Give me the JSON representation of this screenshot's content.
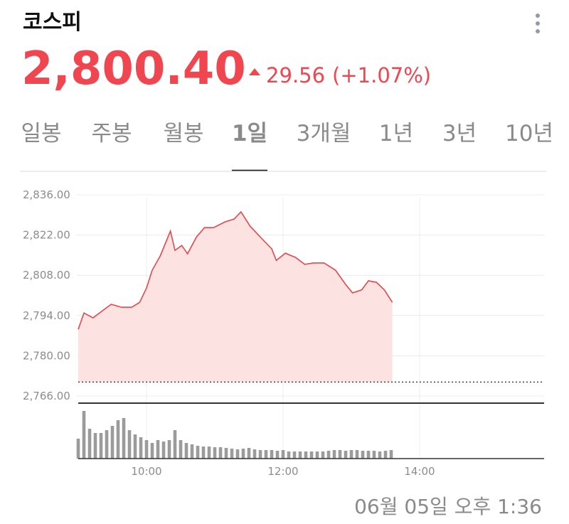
{
  "header": {
    "title": "코스피",
    "price": "2,800.40",
    "change": "29.56",
    "change_pct": "(+1.07%)"
  },
  "tabs": {
    "items": [
      "일봉",
      "주봉",
      "월봉",
      "1일",
      "3개월",
      "1년",
      "3년",
      "10년"
    ],
    "selected": 3
  },
  "chart_data": [
    {
      "type": "area",
      "color": "#e04a4c",
      "fill": "#fde2e2",
      "x": [
        540,
        545,
        553,
        562,
        569,
        578,
        587,
        594,
        600,
        605,
        612,
        621,
        625,
        631,
        636,
        644,
        651,
        659,
        669,
        677,
        683,
        691,
        701,
        710,
        714,
        722,
        731,
        739,
        747,
        756,
        766,
        775,
        781,
        789,
        795,
        802,
        809,
        816
      ],
      "values": [
        2789.2,
        2794.9,
        2793.2,
        2795.9,
        2797.9,
        2796.9,
        2796.9,
        2798.6,
        2803.6,
        2809.8,
        2814.7,
        2823.4,
        2816.7,
        2818.4,
        2815.5,
        2821.4,
        2824.6,
        2824.6,
        2826.6,
        2827.6,
        2830.1,
        2825.1,
        2820.9,
        2817.2,
        2813.2,
        2815.7,
        2814.2,
        2811.8,
        2812.3,
        2812.3,
        2809.8,
        2804.8,
        2801.9,
        2802.9,
        2806.1,
        2805.6,
        2802.9,
        2798.6
      ],
      "xlim": [
        540,
        950
      ],
      "xticks": [
        {
          "value": 600,
          "label": "10:00"
        },
        {
          "value": 720,
          "label": "12:00"
        },
        {
          "value": 840,
          "label": "14:00"
        }
      ],
      "ylim": [
        2766,
        2836
      ],
      "yticks": [
        {
          "value": 2766,
          "label": "2,766.00"
        },
        {
          "value": 2780,
          "label": "2,780.00"
        },
        {
          "value": 2794,
          "label": "2,794.00"
        },
        {
          "value": 2808,
          "label": "2,808.00"
        },
        {
          "value": 2822,
          "label": "2,822.00"
        },
        {
          "value": 2836,
          "label": "2,836.00"
        }
      ],
      "reference_line": 2770.84,
      "grid": true
    },
    {
      "type": "bar",
      "color": "#9b9b9b",
      "x": [
        540,
        545,
        550,
        555,
        560,
        565,
        570,
        575,
        580,
        585,
        590,
        595,
        600,
        605,
        610,
        615,
        620,
        625,
        630,
        635,
        640,
        645,
        650,
        655,
        660,
        665,
        670,
        675,
        680,
        685,
        690,
        695,
        700,
        705,
        710,
        715,
        720,
        725,
        730,
        735,
        740,
        745,
        750,
        755,
        760,
        765,
        770,
        775,
        780,
        785,
        790,
        795,
        800,
        805,
        810,
        815
      ],
      "values": [
        28,
        67,
        42,
        36,
        36,
        40,
        46,
        54,
        57,
        40,
        34,
        30,
        26,
        22,
        26,
        24,
        26,
        40,
        26,
        22,
        20,
        18,
        17,
        17,
        16,
        16,
        15,
        14,
        13,
        14,
        15,
        13,
        12,
        12,
        12,
        11,
        12,
        10,
        10,
        10,
        10,
        10,
        10,
        10,
        11,
        12,
        12,
        11,
        12,
        12,
        11,
        11,
        11,
        10,
        11,
        12
      ],
      "xlim": [
        540,
        950
      ],
      "ylim": [
        0,
        75
      ]
    }
  ],
  "timestamp": "06월 05일 오후 1:36"
}
